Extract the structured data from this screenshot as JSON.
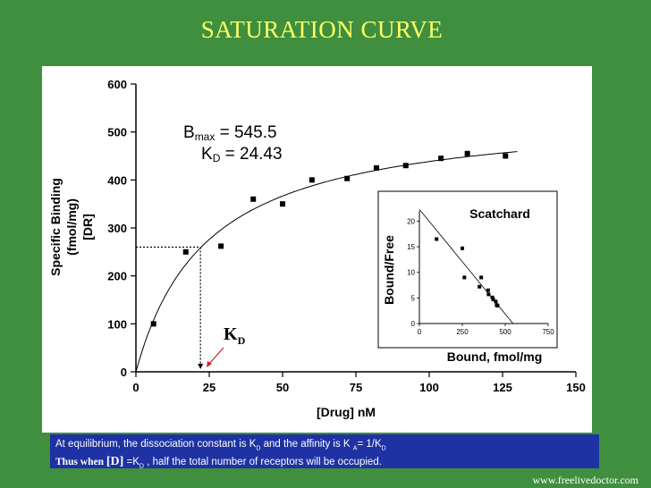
{
  "slide": {
    "title": "SATURATION CURVE",
    "watermark": "www.freelivedoctor.com",
    "caption_line1_text": "At equilibrium, the dissociation constant is K",
    "caption_line1_sub": "D",
    "caption_line1_mid": " and the affinity is K",
    "caption_line1_sub2": "A",
    "caption_line1_end": "= 1/K",
    "caption_line1_sub3": "D",
    "caption_line2_bold": "Thus when ",
    "caption_line2_bracket": "[D]",
    "caption_line2_eq": " =K",
    "caption_line2_sub": "D",
    "caption_line2_end": " , half the total number of receptors will be occupied.",
    "colors": {
      "background": "#3f8f3f",
      "title": "#ffff66",
      "caption_box": "#1e32a3"
    }
  },
  "chart_data": [
    {
      "type": "scatter",
      "xlabel": "[Drug] nM",
      "ylabel_line1": "Specific Binding",
      "ylabel_line2": "(fmol/mg)",
      "ylabel_line3": "[DR]",
      "xlim": [
        0,
        150
      ],
      "ylim": [
        0,
        600
      ],
      "xticks": [
        0,
        25,
        50,
        75,
        100,
        125,
        150
      ],
      "yticks": [
        0,
        100,
        200,
        300,
        400,
        500,
        600
      ],
      "x": [
        6,
        17,
        29,
        40,
        50,
        60,
        72,
        82,
        92,
        104,
        113,
        126
      ],
      "y": [
        100,
        250,
        262,
        360,
        350,
        400,
        403,
        425,
        430,
        445,
        455,
        450
      ],
      "fit": {
        "model": "hyperbola",
        "Bmax": 545.5,
        "KD": 24.43
      },
      "annotation_bmax_label": "B",
      "annotation_bmax_sub": "max",
      "annotation_bmax_value": " = 545.5",
      "annotation_kd_label": "K",
      "annotation_kd_sub": "D",
      "annotation_kd_value": " = 24.43",
      "kd_marker_label": "K",
      "kd_marker_sub": "D",
      "guide_point": {
        "x": 22,
        "y": 260
      }
    },
    {
      "type": "scatter",
      "title": "Scatchard",
      "xlabel": "Bound, fmol/mg",
      "ylabel": "Bound/Free",
      "xlim": [
        0,
        750
      ],
      "ylim": [
        0,
        22
      ],
      "xticks": [
        0,
        250,
        500,
        750
      ],
      "yticks": [
        0,
        5,
        10,
        15,
        20
      ],
      "x": [
        100,
        250,
        262,
        350,
        360,
        400,
        403,
        425,
        430,
        445,
        450,
        455
      ],
      "y": [
        16.5,
        14.7,
        9,
        7.2,
        9,
        6.5,
        5.7,
        5.1,
        4.7,
        4.3,
        3.6,
        3.5
      ],
      "fit_line": {
        "x0": 0,
        "y0": 22.3,
        "x1": 545.5,
        "y1": 0
      }
    }
  ]
}
